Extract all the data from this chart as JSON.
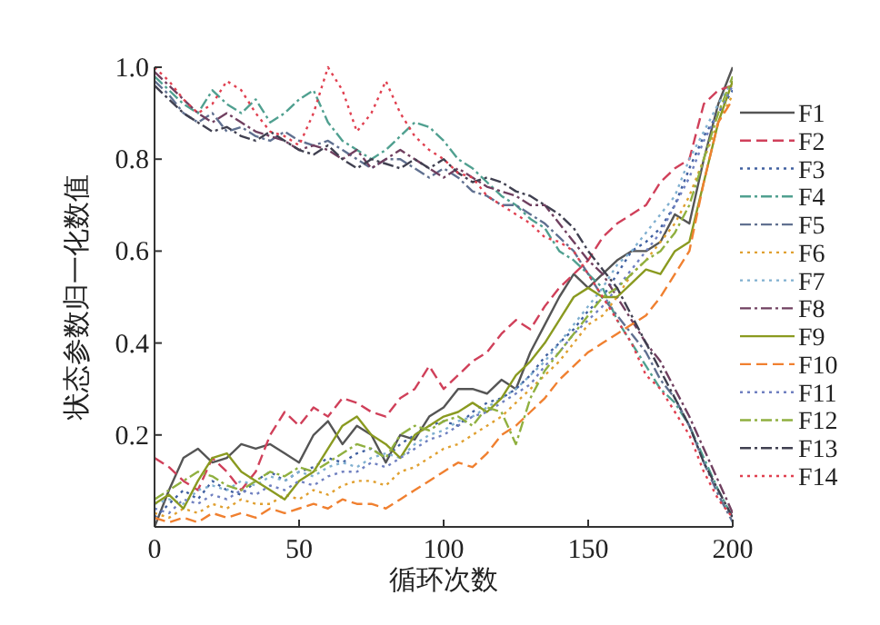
{
  "chart_data": {
    "type": "line",
    "xlabel": "循环次数",
    "ylabel": "状态参数归一化数值",
    "xlim": [
      0,
      200
    ],
    "xticks": [
      0,
      50,
      100,
      150,
      200
    ],
    "ylim": [
      0,
      1
    ],
    "yticks": [
      0.2,
      0.4,
      0.6,
      0.8,
      {
        "value": 1,
        "label": "1.0"
      }
    ],
    "grid": false,
    "legend": "right",
    "x": [
      0,
      5,
      10,
      15,
      20,
      25,
      30,
      35,
      40,
      45,
      50,
      55,
      60,
      65,
      70,
      75,
      80,
      85,
      90,
      95,
      100,
      105,
      110,
      115,
      120,
      125,
      130,
      135,
      140,
      145,
      150,
      155,
      160,
      165,
      170,
      175,
      180,
      185,
      190,
      195,
      200
    ],
    "series": [
      {
        "name": "F1",
        "color": "#555555",
        "line_style": "solid",
        "values": [
          0.0,
          0.08,
          0.15,
          0.17,
          0.14,
          0.15,
          0.18,
          0.17,
          0.18,
          0.16,
          0.14,
          0.2,
          0.23,
          0.18,
          0.22,
          0.2,
          0.14,
          0.2,
          0.19,
          0.24,
          0.26,
          0.3,
          0.3,
          0.29,
          0.32,
          0.3,
          0.38,
          0.44,
          0.5,
          0.55,
          0.52,
          0.55,
          0.58,
          0.6,
          0.6,
          0.62,
          0.68,
          0.66,
          0.8,
          0.92,
          1.0
        ]
      },
      {
        "name": "F2",
        "color": "#d0405a",
        "line_style": "dashed",
        "values": [
          0.15,
          0.13,
          0.1,
          0.08,
          0.15,
          0.12,
          0.08,
          0.12,
          0.2,
          0.25,
          0.22,
          0.26,
          0.24,
          0.28,
          0.27,
          0.25,
          0.24,
          0.28,
          0.3,
          0.35,
          0.3,
          0.33,
          0.36,
          0.38,
          0.42,
          0.45,
          0.43,
          0.48,
          0.52,
          0.55,
          0.58,
          0.63,
          0.66,
          0.68,
          0.7,
          0.75,
          0.78,
          0.8,
          0.92,
          0.95,
          0.96
        ]
      },
      {
        "name": "F3",
        "color": "#4060a0",
        "line_style": "dotted",
        "values": [
          0.02,
          0.05,
          0.08,
          0.06,
          0.1,
          0.08,
          0.07,
          0.1,
          0.12,
          0.1,
          0.12,
          0.13,
          0.15,
          0.14,
          0.16,
          0.17,
          0.15,
          0.18,
          0.2,
          0.22,
          0.23,
          0.22,
          0.25,
          0.27,
          0.28,
          0.3,
          0.33,
          0.37,
          0.4,
          0.43,
          0.47,
          0.5,
          0.55,
          0.6,
          0.62,
          0.65,
          0.7,
          0.78,
          0.85,
          0.9,
          0.95
        ]
      },
      {
        "name": "F4",
        "color": "#50a090",
        "line_style": "dashdot",
        "values": [
          0.98,
          0.95,
          0.92,
          0.9,
          0.95,
          0.92,
          0.9,
          0.93,
          0.88,
          0.9,
          0.93,
          0.95,
          0.88,
          0.84,
          0.82,
          0.8,
          0.82,
          0.85,
          0.88,
          0.87,
          0.84,
          0.8,
          0.78,
          0.75,
          0.72,
          0.7,
          0.67,
          0.65,
          0.6,
          0.58,
          0.55,
          0.52,
          0.45,
          0.4,
          0.35,
          0.3,
          0.27,
          0.22,
          0.15,
          0.08,
          0.02
        ]
      },
      {
        "name": "F5",
        "color": "#607090",
        "line_style": "dashdot",
        "values": [
          0.97,
          0.94,
          0.9,
          0.88,
          0.9,
          0.86,
          0.87,
          0.85,
          0.84,
          0.86,
          0.84,
          0.83,
          0.84,
          0.82,
          0.8,
          0.78,
          0.8,
          0.8,
          0.78,
          0.76,
          0.78,
          0.76,
          0.73,
          0.72,
          0.7,
          0.7,
          0.68,
          0.66,
          0.63,
          0.6,
          0.55,
          0.5,
          0.46,
          0.42,
          0.38,
          0.32,
          0.28,
          0.22,
          0.14,
          0.07,
          0.01
        ]
      },
      {
        "name": "F6",
        "color": "#e0a030",
        "line_style": "dotted",
        "values": [
          0.03,
          0.02,
          0.04,
          0.03,
          0.05,
          0.04,
          0.06,
          0.05,
          0.05,
          0.07,
          0.06,
          0.08,
          0.07,
          0.09,
          0.1,
          0.1,
          0.09,
          0.12,
          0.13,
          0.15,
          0.17,
          0.18,
          0.2,
          0.22,
          0.24,
          0.27,
          0.3,
          0.33,
          0.36,
          0.4,
          0.44,
          0.46,
          0.5,
          0.55,
          0.58,
          0.62,
          0.66,
          0.72,
          0.8,
          0.88,
          0.94
        ]
      },
      {
        "name": "F7",
        "color": "#80b0d0",
        "line_style": "dotted",
        "values": [
          0.05,
          0.06,
          0.05,
          0.08,
          0.09,
          0.08,
          0.1,
          0.09,
          0.11,
          0.1,
          0.12,
          0.11,
          0.13,
          0.14,
          0.13,
          0.15,
          0.16,
          0.15,
          0.18,
          0.2,
          0.21,
          0.23,
          0.24,
          0.26,
          0.28,
          0.3,
          0.33,
          0.36,
          0.4,
          0.44,
          0.48,
          0.52,
          0.57,
          0.6,
          0.64,
          0.68,
          0.72,
          0.8,
          0.86,
          0.92,
          0.97
        ]
      },
      {
        "name": "F8",
        "color": "#704060",
        "line_style": "dashdot",
        "values": [
          0.99,
          0.96,
          0.93,
          0.9,
          0.88,
          0.9,
          0.88,
          0.86,
          0.85,
          0.84,
          0.82,
          0.83,
          0.82,
          0.8,
          0.82,
          0.78,
          0.8,
          0.82,
          0.8,
          0.78,
          0.76,
          0.78,
          0.76,
          0.74,
          0.73,
          0.72,
          0.7,
          0.7,
          0.66,
          0.62,
          0.58,
          0.55,
          0.5,
          0.45,
          0.4,
          0.36,
          0.3,
          0.24,
          0.17,
          0.1,
          0.03
        ]
      },
      {
        "name": "F9",
        "color": "#8a9a20",
        "line_style": "solid",
        "values": [
          0.05,
          0.07,
          0.04,
          0.1,
          0.15,
          0.16,
          0.12,
          0.1,
          0.08,
          0.06,
          0.1,
          0.12,
          0.17,
          0.22,
          0.24,
          0.2,
          0.18,
          0.15,
          0.2,
          0.22,
          0.24,
          0.25,
          0.27,
          0.25,
          0.28,
          0.33,
          0.36,
          0.4,
          0.45,
          0.5,
          0.52,
          0.5,
          0.5,
          0.53,
          0.56,
          0.55,
          0.6,
          0.62,
          0.75,
          0.88,
          0.97
        ]
      },
      {
        "name": "F10",
        "color": "#f08030",
        "line_style": "dashed",
        "values": [
          0.02,
          0.01,
          0.02,
          0.01,
          0.03,
          0.02,
          0.03,
          0.02,
          0.04,
          0.03,
          0.04,
          0.05,
          0.04,
          0.06,
          0.05,
          0.05,
          0.04,
          0.06,
          0.08,
          0.1,
          0.12,
          0.14,
          0.13,
          0.16,
          0.2,
          0.22,
          0.25,
          0.28,
          0.32,
          0.35,
          0.38,
          0.4,
          0.42,
          0.44,
          0.46,
          0.5,
          0.55,
          0.6,
          0.75,
          0.88,
          0.93
        ]
      },
      {
        "name": "F11",
        "color": "#7080c0",
        "line_style": "dotted",
        "values": [
          0.04,
          0.03,
          0.06,
          0.05,
          0.07,
          0.06,
          0.08,
          0.07,
          0.09,
          0.08,
          0.1,
          0.09,
          0.11,
          0.12,
          0.12,
          0.14,
          0.13,
          0.15,
          0.17,
          0.19,
          0.2,
          0.22,
          0.24,
          0.25,
          0.27,
          0.29,
          0.31,
          0.35,
          0.38,
          0.42,
          0.45,
          0.48,
          0.52,
          0.56,
          0.6,
          0.64,
          0.7,
          0.76,
          0.84,
          0.9,
          0.96
        ]
      },
      {
        "name": "F12",
        "color": "#90b040",
        "line_style": "dashdot",
        "values": [
          0.06,
          0.08,
          0.1,
          0.12,
          0.11,
          0.09,
          0.08,
          0.1,
          0.12,
          0.11,
          0.13,
          0.12,
          0.14,
          0.16,
          0.18,
          0.17,
          0.15,
          0.2,
          0.22,
          0.21,
          0.23,
          0.24,
          0.22,
          0.26,
          0.25,
          0.18,
          0.28,
          0.34,
          0.38,
          0.42,
          0.46,
          0.5,
          0.52,
          0.55,
          0.58,
          0.6,
          0.64,
          0.7,
          0.8,
          0.9,
          0.98
        ]
      },
      {
        "name": "F13",
        "color": "#404050",
        "line_style": "dashdot",
        "values": [
          0.96,
          0.93,
          0.9,
          0.88,
          0.86,
          0.87,
          0.85,
          0.84,
          0.86,
          0.84,
          0.82,
          0.81,
          0.83,
          0.8,
          0.78,
          0.8,
          0.79,
          0.78,
          0.8,
          0.78,
          0.8,
          0.77,
          0.75,
          0.76,
          0.75,
          0.73,
          0.72,
          0.7,
          0.68,
          0.65,
          0.6,
          0.56,
          0.52,
          0.46,
          0.4,
          0.34,
          0.28,
          0.22,
          0.14,
          0.08,
          0.02
        ]
      },
      {
        "name": "F14",
        "color": "#e04050",
        "line_style": "dotted",
        "values": [
          1.0,
          0.97,
          0.93,
          0.9,
          0.92,
          0.97,
          0.95,
          0.9,
          0.86,
          0.85,
          0.83,
          0.9,
          1.0,
          0.95,
          0.86,
          0.9,
          0.97,
          0.9,
          0.85,
          0.82,
          0.8,
          0.77,
          0.76,
          0.72,
          0.7,
          0.68,
          0.66,
          0.63,
          0.62,
          0.6,
          0.55,
          0.5,
          0.45,
          0.4,
          0.33,
          0.3,
          0.25,
          0.2,
          0.12,
          0.06,
          0.02
        ]
      }
    ]
  }
}
